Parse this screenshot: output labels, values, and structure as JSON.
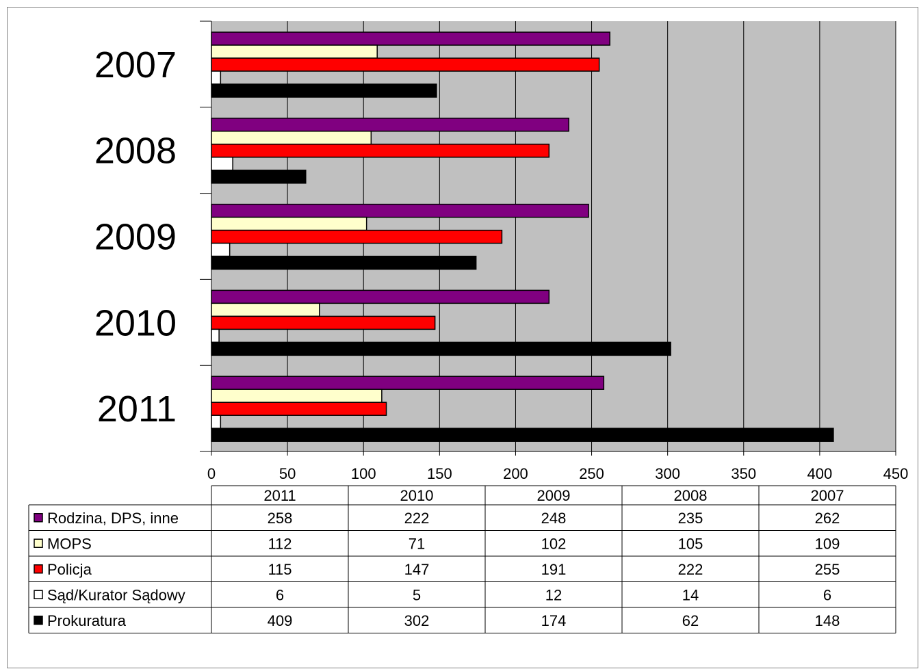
{
  "chart_data": {
    "type": "bar",
    "orientation": "horizontal",
    "title": "",
    "xlabel": "",
    "ylabel": "",
    "categories": [
      "2011",
      "2010",
      "2009",
      "2008",
      "2007"
    ],
    "category_order_top_to_bottom": [
      "2007",
      "2008",
      "2009",
      "2010",
      "2011"
    ],
    "xlim": [
      0,
      450
    ],
    "x_ticks": [
      "0",
      "50",
      "100",
      "150",
      "200",
      "250",
      "300",
      "350",
      "400",
      "450"
    ],
    "grid": true,
    "plot_background": "#c0c0c0",
    "legend_placement": "data-table",
    "series": [
      {
        "name": "Rodzina, DPS, inne",
        "color": "#800080",
        "values": [
          258,
          222,
          248,
          235,
          262
        ]
      },
      {
        "name": "MOPS",
        "color": "#ffffcc",
        "values": [
          112,
          71,
          102,
          105,
          109
        ]
      },
      {
        "name": "Policja",
        "color": "#ff0000",
        "values": [
          115,
          147,
          191,
          222,
          255
        ]
      },
      {
        "name": "Sąd/Kurator Sądowy",
        "color": "#ffffff",
        "values": [
          6,
          5,
          12,
          14,
          6
        ]
      },
      {
        "name": "Prokuratura",
        "color": "#000000",
        "values": [
          409,
          302,
          174,
          62,
          148
        ]
      }
    ],
    "table_values": [
      [
        "258",
        "222",
        "248",
        "235",
        "262"
      ],
      [
        "112",
        "71",
        "102",
        "105",
        "109"
      ],
      [
        "115",
        "147",
        "191",
        "222",
        "255"
      ],
      [
        "6",
        "5",
        "12",
        "14",
        "6"
      ],
      [
        "409",
        "302",
        "174",
        "62",
        "148"
      ]
    ]
  }
}
